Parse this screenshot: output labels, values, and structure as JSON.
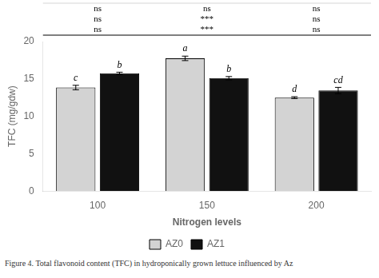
{
  "chart_data": {
    "type": "bar",
    "categories": [
      "100",
      "150",
      "200"
    ],
    "xlabel": "Nitrogen levels",
    "ylabel": "TFC (mg/gdw)",
    "series": [
      {
        "name": "AZ0",
        "color": "#d3d3d3",
        "values": [
          13.85,
          17.75,
          12.5
        ],
        "errors": [
          0.3,
          0.3,
          0.12
        ],
        "letters": [
          "c",
          "a",
          "d"
        ]
      },
      {
        "name": "AZ1",
        "color": "#111111",
        "values": [
          15.75,
          15.1,
          13.45
        ],
        "errors": [
          0.15,
          0.22,
          0.42
        ],
        "letters": [
          "b",
          "b",
          "cd"
        ]
      }
    ],
    "ylim": [
      0,
      20
    ],
    "yticks": [
      0,
      5,
      10,
      15,
      20
    ],
    "grid": false,
    "legend": "bottom",
    "table": [
      [
        "ns",
        "ns",
        "ns"
      ],
      [
        "ns",
        "***",
        "***"
      ],
      [
        "ns",
        "ns",
        "ns"
      ]
    ],
    "caption": "Figure 4. Total flavonoid content (TFC) in hydroponically grown lettuce influenced by Az"
  }
}
